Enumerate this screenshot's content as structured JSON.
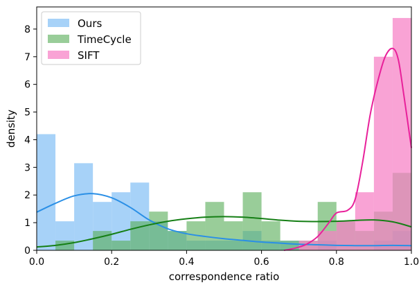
{
  "chart_data": {
    "type": "histogram",
    "xlabel": "correspondence ratio",
    "ylabel": "density",
    "xlim": [
      0.0,
      1.0
    ],
    "ylim": [
      0,
      8.8
    ],
    "x_ticks": [
      "0.0",
      "0.2",
      "0.4",
      "0.6",
      "0.8",
      "1.0"
    ],
    "y_ticks": [
      "0",
      "1",
      "2",
      "3",
      "4",
      "5",
      "6",
      "7",
      "8"
    ],
    "bin_width": 0.05,
    "legend_position": "top-left",
    "series": [
      {
        "name": "Ours",
        "color": "#85c1f5",
        "line_color": "#2a8fe6",
        "opacity": 0.72,
        "bin_starts": [
          0.0,
          0.05,
          0.1,
          0.15,
          0.2,
          0.25,
          0.3,
          0.35,
          0.4,
          0.45,
          0.5,
          0.55,
          0.6,
          0.65,
          0.7,
          0.75,
          0.8,
          0.85,
          0.9,
          0.95
        ],
        "density": [
          4.2,
          1.05,
          3.15,
          1.75,
          2.1,
          2.45,
          1.05,
          0.7,
          0.35,
          0.35,
          0.35,
          0.7,
          0.35,
          0.35,
          0.0,
          0.35,
          0.0,
          0.0,
          0.35,
          0.7
        ],
        "kde": [
          [
            0.0,
            1.38
          ],
          [
            0.05,
            1.7
          ],
          [
            0.1,
            1.97
          ],
          [
            0.15,
            2.05
          ],
          [
            0.2,
            1.9
          ],
          [
            0.25,
            1.55
          ],
          [
            0.3,
            1.1
          ],
          [
            0.35,
            0.78
          ],
          [
            0.4,
            0.6
          ],
          [
            0.45,
            0.5
          ],
          [
            0.5,
            0.42
          ],
          [
            0.55,
            0.36
          ],
          [
            0.6,
            0.3
          ],
          [
            0.65,
            0.26
          ],
          [
            0.7,
            0.22
          ],
          [
            0.75,
            0.2
          ],
          [
            0.8,
            0.18
          ],
          [
            0.85,
            0.17
          ],
          [
            0.9,
            0.17
          ],
          [
            0.95,
            0.18
          ],
          [
            1.0,
            0.17
          ]
        ]
      },
      {
        "name": "TimeCycle",
        "color": "#5aaf5a",
        "line_color": "#157f15",
        "opacity": 0.62,
        "bin_starts": [
          0.0,
          0.05,
          0.1,
          0.15,
          0.2,
          0.25,
          0.3,
          0.35,
          0.4,
          0.45,
          0.5,
          0.55,
          0.6,
          0.65,
          0.7,
          0.75,
          0.8,
          0.85,
          0.9,
          0.95
        ],
        "density": [
          0.0,
          0.35,
          0.0,
          0.7,
          0.35,
          1.05,
          1.4,
          0.7,
          1.05,
          1.75,
          1.05,
          2.1,
          1.05,
          0.35,
          0.35,
          1.75,
          1.05,
          0.7,
          1.4,
          2.8
        ],
        "kde": [
          [
            0.0,
            0.12
          ],
          [
            0.05,
            0.18
          ],
          [
            0.1,
            0.28
          ],
          [
            0.15,
            0.42
          ],
          [
            0.2,
            0.58
          ],
          [
            0.25,
            0.76
          ],
          [
            0.3,
            0.92
          ],
          [
            0.35,
            1.05
          ],
          [
            0.4,
            1.14
          ],
          [
            0.45,
            1.2
          ],
          [
            0.5,
            1.22
          ],
          [
            0.55,
            1.2
          ],
          [
            0.6,
            1.15
          ],
          [
            0.65,
            1.09
          ],
          [
            0.7,
            1.05
          ],
          [
            0.75,
            1.04
          ],
          [
            0.8,
            1.05
          ],
          [
            0.85,
            1.08
          ],
          [
            0.9,
            1.1
          ],
          [
            0.95,
            1.03
          ],
          [
            1.0,
            0.85
          ]
        ]
      },
      {
        "name": "SIFT",
        "color": "#f780c5",
        "line_color": "#e8209a",
        "opacity": 0.72,
        "bin_starts": [
          0.0,
          0.05,
          0.1,
          0.15,
          0.2,
          0.25,
          0.3,
          0.35,
          0.4,
          0.45,
          0.5,
          0.55,
          0.6,
          0.65,
          0.7,
          0.75,
          0.8,
          0.85,
          0.9,
          0.95
        ],
        "density": [
          0.0,
          0.0,
          0.0,
          0.0,
          0.0,
          0.0,
          0.0,
          0.0,
          0.0,
          0.0,
          0.0,
          0.0,
          0.0,
          0.0,
          0.35,
          0.7,
          1.05,
          2.1,
          7.0,
          8.4
        ],
        "kde": [
          [
            0.66,
            0.0
          ],
          [
            0.69,
            0.08
          ],
          [
            0.72,
            0.22
          ],
          [
            0.75,
            0.5
          ],
          [
            0.78,
            1.0
          ],
          [
            0.8,
            1.35
          ],
          [
            0.83,
            1.45
          ],
          [
            0.85,
            1.85
          ],
          [
            0.87,
            3.2
          ],
          [
            0.89,
            4.9
          ],
          [
            0.91,
            6.1
          ],
          [
            0.93,
            7.0
          ],
          [
            0.95,
            7.3
          ],
          [
            0.965,
            6.9
          ],
          [
            0.98,
            5.6
          ],
          [
            1.0,
            3.7
          ]
        ]
      }
    ]
  }
}
